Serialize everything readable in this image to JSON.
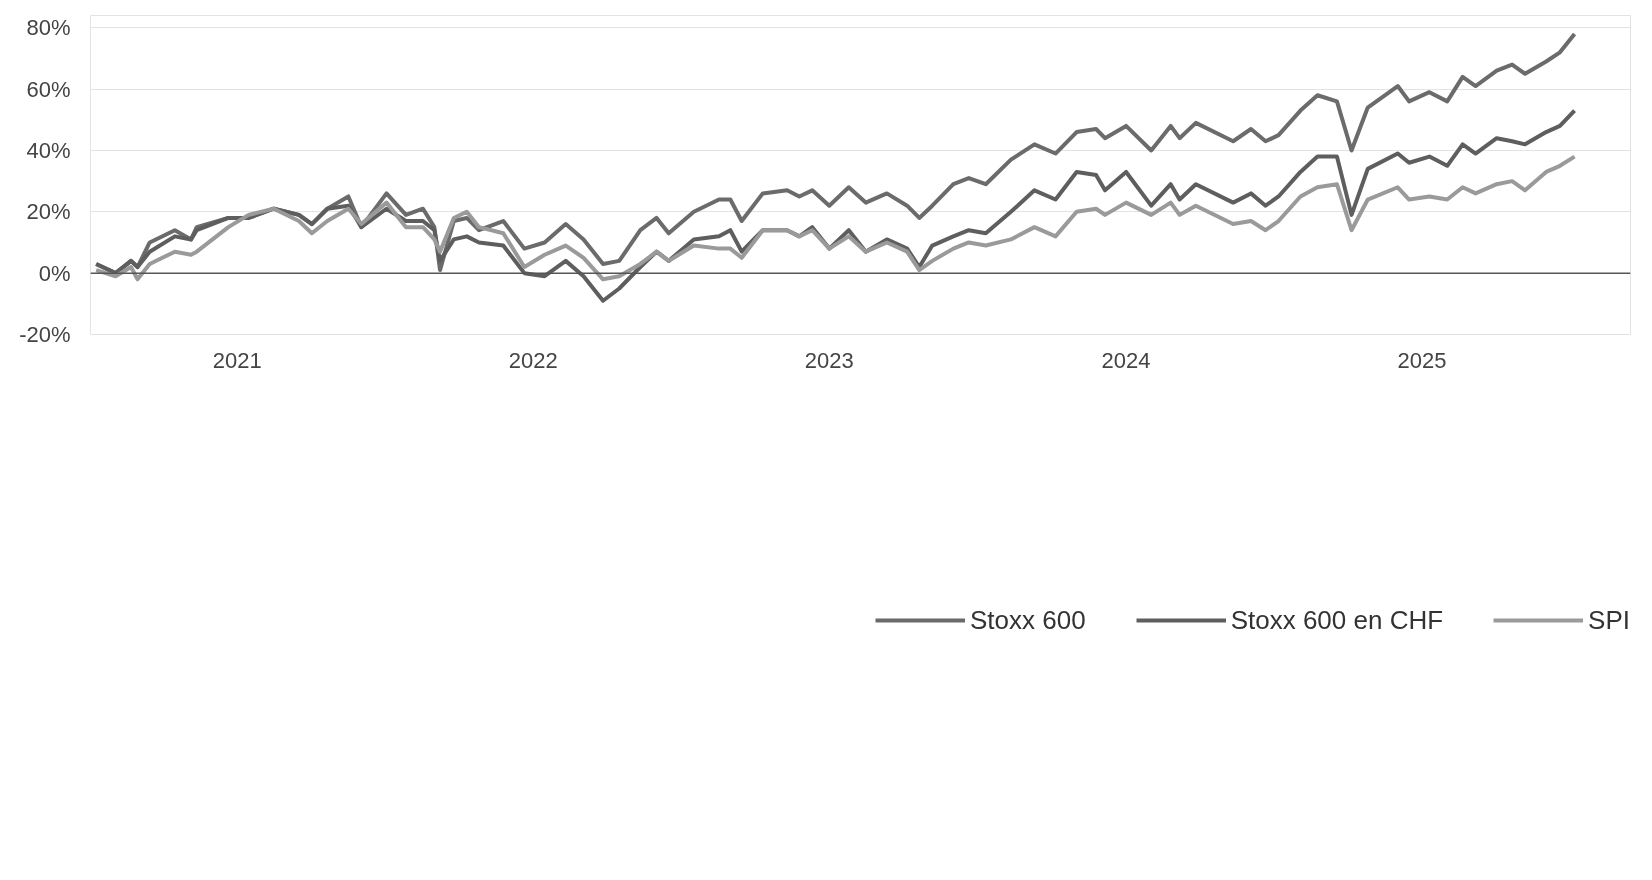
{
  "chart_data": {
    "type": "line",
    "x": [
      "2021-01-08",
      "2021-02-01",
      "2021-02-20",
      "2021-02-28",
      "2021-03-15",
      "2021-04-15",
      "2021-05-05",
      "2021-05-12",
      "2021-06-20",
      "2021-07-15",
      "2021-08-15",
      "2021-09-15",
      "2021-10-01",
      "2021-10-20",
      "2021-11-15",
      "2021-12-01",
      "2022-01-01",
      "2022-01-25",
      "2022-02-15",
      "2022-03-01",
      "2022-03-08",
      "2022-03-25",
      "2022-04-10",
      "2022-04-25",
      "2022-05-25",
      "2022-06-20",
      "2022-07-15",
      "2022-08-10",
      "2022-09-01",
      "2022-09-25",
      "2022-10-15",
      "2022-11-10",
      "2022-11-30",
      "2022-12-15",
      "2023-01-15",
      "2023-02-15",
      "2023-03-01",
      "2023-03-15",
      "2023-04-10",
      "2023-05-10",
      "2023-05-25",
      "2023-06-10",
      "2023-07-01",
      "2023-07-25",
      "2023-08-15",
      "2023-09-10",
      "2023-10-05",
      "2023-10-20",
      "2023-11-05",
      "2023-12-01",
      "2023-12-20",
      "2024-01-10",
      "2024-02-10",
      "2024-03-10",
      "2024-04-05",
      "2024-05-01",
      "2024-05-25",
      "2024-06-05",
      "2024-07-01",
      "2024-08-01",
      "2024-08-25",
      "2024-09-05",
      "2024-09-25",
      "2024-11-10",
      "2024-12-02",
      "2024-12-20",
      "2025-01-05",
      "2025-02-01",
      "2025-02-22",
      "2025-03-18",
      "2025-04-05",
      "2025-04-25",
      "2025-06-01",
      "2025-06-15",
      "2025-07-10",
      "2025-08-01",
      "2025-08-20",
      "2025-09-05",
      "2025-10-01",
      "2025-10-20",
      "2025-11-05",
      "2025-12-01",
      "2025-12-18",
      "2026-01-05"
    ],
    "series": [
      {
        "name": "Stoxx 600",
        "color": "#6b6b6b",
        "values": [
          3,
          0,
          4,
          2,
          10,
          14,
          11,
          15,
          18,
          18,
          21,
          19,
          16,
          21,
          25,
          15,
          26,
          19,
          21,
          15,
          1,
          17,
          18,
          14,
          17,
          8,
          10,
          16,
          11,
          3,
          4,
          14,
          18,
          13,
          20,
          24,
          24,
          17,
          26,
          27,
          25,
          27,
          22,
          28,
          23,
          26,
          22,
          18,
          22,
          29,
          31,
          29,
          37,
          42,
          39,
          46,
          47,
          44,
          48,
          40,
          48,
          44,
          49,
          43,
          47,
          43,
          45,
          53,
          58,
          56,
          40,
          54,
          61,
          56,
          59,
          56,
          64,
          61,
          66,
          68,
          65,
          69,
          72,
          78
        ]
      },
      {
        "name": "Stoxx 600 en CHF",
        "color": "#5e5e5e",
        "values": [
          3,
          0,
          4,
          2,
          7,
          12,
          11,
          14,
          18,
          18,
          21,
          19,
          16,
          21,
          22,
          15,
          21,
          17,
          17,
          14,
          4,
          11,
          12,
          10,
          9,
          0,
          -1,
          4,
          -1,
          -9,
          -5,
          2,
          7,
          4,
          11,
          12,
          14,
          7,
          14,
          14,
          12,
          15,
          8,
          14,
          7,
          11,
          8,
          2,
          9,
          12,
          14,
          13,
          20,
          27,
          24,
          33,
          32,
          27,
          33,
          22,
          29,
          24,
          29,
          23,
          26,
          22,
          25,
          33,
          38,
          38,
          19,
          34,
          39,
          36,
          38,
          35,
          42,
          39,
          44,
          43,
          42,
          46,
          48,
          53
        ]
      },
      {
        "name": "SPI",
        "color": "#9a9a9a",
        "values": [
          1,
          -1,
          2,
          -2,
          3,
          7,
          6,
          7,
          15,
          19,
          21,
          17,
          13,
          17,
          21,
          16,
          23,
          15,
          15,
          11,
          7,
          18,
          20,
          15,
          13,
          2,
          6,
          9,
          5,
          -2,
          -1,
          3,
          7,
          4,
          9,
          8,
          8,
          5,
          14,
          14,
          12,
          14,
          8,
          12,
          7,
          10,
          7,
          1,
          4,
          8,
          10,
          9,
          11,
          15,
          12,
          20,
          21,
          19,
          23,
          19,
          23,
          19,
          22,
          16,
          17,
          14,
          17,
          25,
          28,
          29,
          14,
          24,
          28,
          24,
          25,
          24,
          28,
          26,
          29,
          30,
          27,
          33,
          35,
          38
        ]
      }
    ],
    "xlim": [
      "2021-01-01",
      "2026-03-15"
    ],
    "xticks": [
      {
        "value": "2021-07-01",
        "label": "2021"
      },
      {
        "value": "2022-07-01",
        "label": "2022"
      },
      {
        "value": "2023-07-01",
        "label": "2023"
      },
      {
        "value": "2024-07-01",
        "label": "2024"
      },
      {
        "value": "2025-07-01",
        "label": "2025"
      }
    ],
    "ylim": [
      -20,
      84
    ],
    "yticks": [
      {
        "value": -20,
        "label": "-20%"
      },
      {
        "value": 0,
        "label": "0%"
      },
      {
        "value": 20,
        "label": "20%"
      },
      {
        "value": 40,
        "label": "40%"
      },
      {
        "value": 60,
        "label": "60%"
      },
      {
        "value": 80,
        "label": "80%"
      }
    ],
    "ref_lines": [
      {
        "axis": "y",
        "value": 0,
        "color": "#555555"
      }
    ],
    "grid": "y",
    "legend": "bottom",
    "line_style": "solid",
    "marker": "none"
  }
}
